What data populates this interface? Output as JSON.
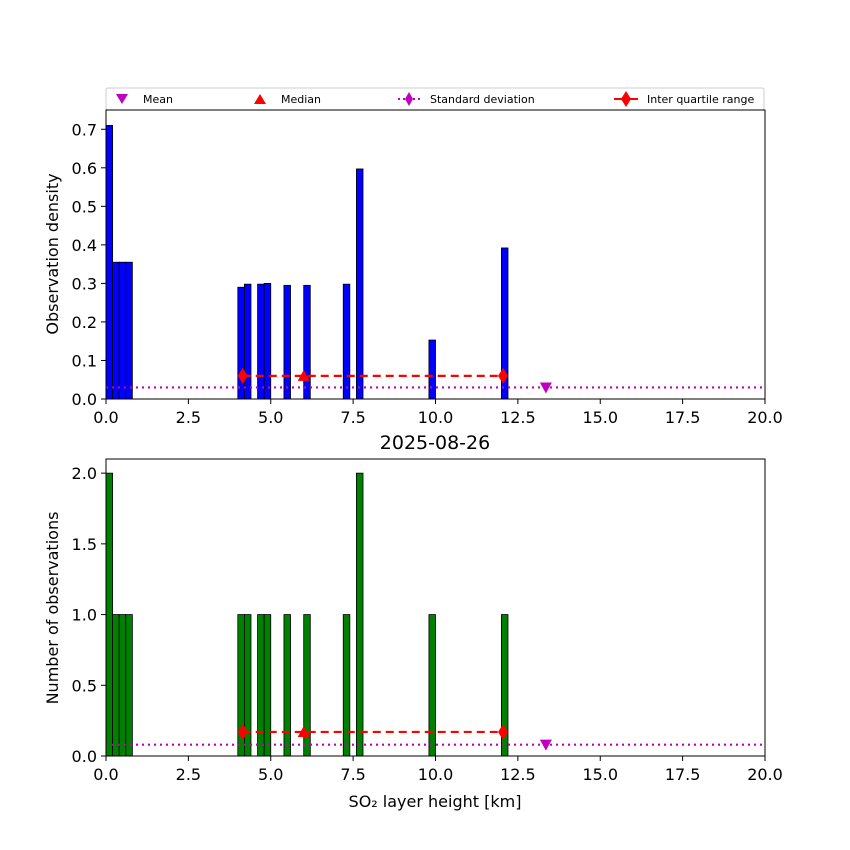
{
  "legend": {
    "mean": "Mean",
    "median": "Median",
    "std": "Standard deviation",
    "iqr": "Inter quartile range"
  },
  "colors": {
    "density_bars": "#0000ff",
    "count_bars": "#008000",
    "mean_marker": "#bf00bf",
    "std_line": "#bf00bf",
    "median_marker": "#ff0000",
    "iqr_line": "#ff0000"
  },
  "chart_data": [
    {
      "type": "bar",
      "title": "",
      "xlabel": "",
      "ylabel": "Observation density",
      "xlim": [
        0,
        20
      ],
      "ylim": [
        0,
        0.75
      ],
      "xticks": [
        "0.0",
        "2.5",
        "5.0",
        "7.5",
        "10.0",
        "12.5",
        "15.0",
        "17.5",
        "20.0"
      ],
      "yticks": [
        "0.0",
        "0.1",
        "0.2",
        "0.3",
        "0.4",
        "0.5",
        "0.6",
        "0.7"
      ],
      "bars": [
        {
          "x0": 0.0,
          "x1": 0.2,
          "value": 0.71
        },
        {
          "x0": 0.2,
          "x1": 0.4,
          "value": 0.355
        },
        {
          "x0": 0.4,
          "x1": 0.6,
          "value": 0.355
        },
        {
          "x0": 0.6,
          "x1": 0.8,
          "value": 0.355
        },
        {
          "x0": 4.0,
          "x1": 4.2,
          "value": 0.29
        },
        {
          "x0": 4.2,
          "x1": 4.4,
          "value": 0.298
        },
        {
          "x0": 4.6,
          "x1": 4.8,
          "value": 0.298
        },
        {
          "x0": 4.8,
          "x1": 5.0,
          "value": 0.3
        },
        {
          "x0": 5.4,
          "x1": 5.6,
          "value": 0.295
        },
        {
          "x0": 6.0,
          "x1": 6.2,
          "value": 0.295
        },
        {
          "x0": 7.2,
          "x1": 7.4,
          "value": 0.298
        },
        {
          "x0": 7.6,
          "x1": 7.8,
          "value": 0.597
        },
        {
          "x0": 9.8,
          "x1": 10.0,
          "value": 0.153
        },
        {
          "x0": 12.0,
          "x1": 12.2,
          "value": 0.392
        }
      ],
      "std_line_y": 0.03,
      "mean": {
        "x": 13.35,
        "y": 0.03
      },
      "median": {
        "x": 6.0,
        "y": 0.06
      },
      "iqr": {
        "x": [
          4.15,
          12.05
        ],
        "y": 0.06
      }
    },
    {
      "type": "bar",
      "title": "2025-08-26",
      "xlabel": "SO₂ layer height [km]",
      "ylabel": "Number of observations",
      "xlim": [
        0,
        20
      ],
      "ylim": [
        0,
        2.1
      ],
      "xticks": [
        "0.0",
        "2.5",
        "5.0",
        "7.5",
        "10.0",
        "12.5",
        "15.0",
        "17.5",
        "20.0"
      ],
      "yticks": [
        "0.0",
        "0.5",
        "1.0",
        "1.5",
        "2.0"
      ],
      "bars": [
        {
          "x0": 0.0,
          "x1": 0.2,
          "value": 2
        },
        {
          "x0": 0.2,
          "x1": 0.4,
          "value": 1
        },
        {
          "x0": 0.4,
          "x1": 0.6,
          "value": 1
        },
        {
          "x0": 0.6,
          "x1": 0.8,
          "value": 1
        },
        {
          "x0": 4.0,
          "x1": 4.2,
          "value": 1
        },
        {
          "x0": 4.2,
          "x1": 4.4,
          "value": 1
        },
        {
          "x0": 4.6,
          "x1": 4.8,
          "value": 1
        },
        {
          "x0": 4.8,
          "x1": 5.0,
          "value": 1
        },
        {
          "x0": 5.4,
          "x1": 5.6,
          "value": 1
        },
        {
          "x0": 6.0,
          "x1": 6.2,
          "value": 1
        },
        {
          "x0": 7.2,
          "x1": 7.4,
          "value": 1
        },
        {
          "x0": 7.6,
          "x1": 7.8,
          "value": 2
        },
        {
          "x0": 9.8,
          "x1": 10.0,
          "value": 1
        },
        {
          "x0": 12.0,
          "x1": 12.2,
          "value": 1
        }
      ],
      "std_line_y": 0.08,
      "mean": {
        "x": 13.35,
        "y": 0.08
      },
      "median": {
        "x": 6.0,
        "y": 0.17
      },
      "iqr": {
        "x": [
          4.15,
          12.05
        ],
        "y": 0.17
      }
    }
  ]
}
